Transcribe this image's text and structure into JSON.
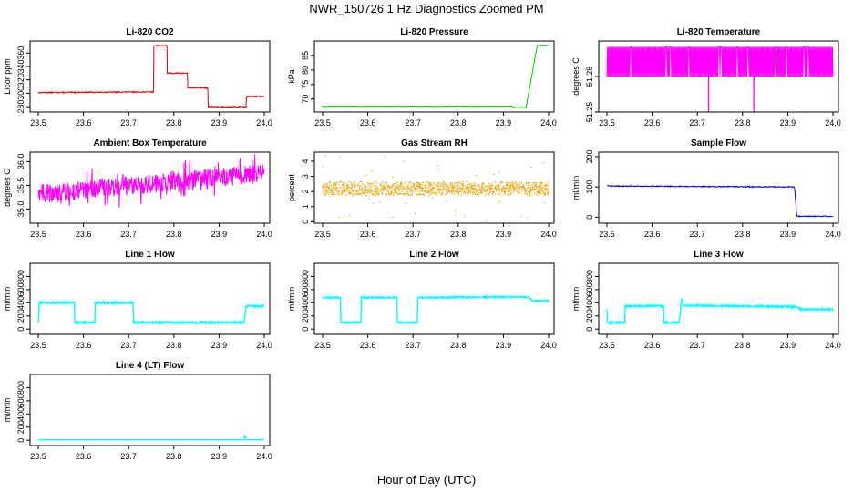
{
  "figure": {
    "title": "NWR_150726  1 Hz Diagnostics Zoomed PM",
    "xlabel": "Hour of Day (UTC)"
  },
  "chart_data": [
    {
      "type": "line",
      "title": "Li-820 CO2",
      "ylabel": "Licor ppm",
      "color": "#dd0000",
      "xlim": [
        23.5,
        24.0
      ],
      "ylim": [
        272,
        378
      ],
      "xticks": [
        "23.5",
        "23.6",
        "23.7",
        "23.8",
        "23.9",
        "24.0"
      ],
      "yticks": [
        "280",
        "300",
        "320",
        "340",
        "360"
      ],
      "series": [
        {
          "name": "CO2",
          "x": [
            23.5,
            23.755,
            23.755,
            23.785,
            23.785,
            23.83,
            23.83,
            23.875,
            23.875,
            23.96,
            23.96,
            24.0
          ],
          "y": [
            301,
            302,
            371,
            371,
            330,
            330,
            308,
            308,
            280,
            280,
            295,
            295
          ],
          "noise": 0.8
        }
      ]
    },
    {
      "type": "line",
      "title": "Li-820 Pressure",
      "ylabel": "kPa",
      "color": "#00cc00",
      "xlim": [
        23.5,
        24.0
      ],
      "ylim": [
        65.5,
        90
      ],
      "xticks": [
        "23.5",
        "23.6",
        "23.7",
        "23.8",
        "23.9",
        "24.0"
      ],
      "yticks": [
        "70",
        "75",
        "80",
        "85"
      ],
      "series": [
        {
          "name": "Pressure",
          "x": [
            23.5,
            23.92,
            23.925,
            23.95,
            23.965,
            23.975,
            24.0
          ],
          "y": [
            67.5,
            67.5,
            67.0,
            67.0,
            80,
            88.5,
            88.5
          ],
          "noise": 0.05
        }
      ]
    },
    {
      "type": "line",
      "title": "Li-820 Temperature",
      "ylabel": "degrees C",
      "color": "#ff00ff",
      "xlim": [
        23.5,
        24.0
      ],
      "ylim": [
        51.25,
        51.31
      ],
      "xticks": [
        "23.5",
        "23.6",
        "23.7",
        "23.8",
        "23.9",
        "24.0"
      ],
      "yticks": [
        "51.25",
        "51.28"
      ],
      "series": [
        {
          "name": "Temperature",
          "x": [
            23.5,
            24.0
          ],
          "y": [
            51.29,
            51.29
          ],
          "band": [
            51.28,
            51.305
          ],
          "dips": [
            23.725,
            23.825
          ],
          "dip_value": 51.25
        }
      ]
    },
    {
      "type": "line",
      "title": "Ambient Box Temperature",
      "ylabel": "degrees C",
      "color": "#ff00ff",
      "xlim": [
        23.5,
        24.0
      ],
      "ylim": [
        34.7,
        36.2
      ],
      "xticks": [
        "23.5",
        "23.6",
        "23.7",
        "23.8",
        "23.9",
        "24.0"
      ],
      "yticks": [
        "35.0",
        "35.5",
        "36.0"
      ],
      "series": [
        {
          "name": "Ambient",
          "x": [
            23.5,
            24.0
          ],
          "y": [
            35.32,
            35.75
          ],
          "noise": 0.2
        }
      ]
    },
    {
      "type": "scatter",
      "title": "Gas Stream RH",
      "ylabel": "percent",
      "color": "#e6a000",
      "xlim": [
        23.5,
        24.0
      ],
      "ylim": [
        -0.1,
        4.6
      ],
      "xticks": [
        "23.5",
        "23.6",
        "23.7",
        "23.8",
        "23.9",
        "24.0"
      ],
      "yticks": [
        "0",
        "1",
        "2",
        "3",
        "4"
      ],
      "series": [
        {
          "name": "RH",
          "x": [
            23.5,
            24.0
          ],
          "y": [
            2.2,
            2.2
          ],
          "noise": 0.45
        }
      ]
    },
    {
      "type": "line",
      "title": "Sample Flow",
      "ylabel": "ml/min",
      "color": "#0000cc",
      "xlim": [
        23.5,
        24.0
      ],
      "ylim": [
        -20,
        215
      ],
      "xticks": [
        "23.5",
        "23.6",
        "23.7",
        "23.8",
        "23.9",
        "24.0"
      ],
      "yticks": [
        "0",
        "100",
        "200"
      ],
      "series": [
        {
          "name": "Sample Flow",
          "x": [
            23.5,
            23.91,
            23.915,
            23.92,
            24.0
          ],
          "y": [
            103,
            100,
            100,
            3,
            3
          ],
          "noise": 1.5
        }
      ]
    },
    {
      "type": "line",
      "title": "Line 1 Flow",
      "ylabel": "ml/min",
      "color": "#00ffff",
      "xlim": [
        23.5,
        24.0
      ],
      "ylim": [
        -80,
        1000
      ],
      "xticks": [
        "23.5",
        "23.6",
        "23.7",
        "23.8",
        "23.9",
        "24.0"
      ],
      "yticks": [
        "0",
        "200",
        "400",
        "600",
        "800"
      ],
      "series": [
        {
          "name": "Line 1",
          "x": [
            23.5,
            23.502,
            23.504,
            23.58,
            23.58,
            23.625,
            23.625,
            23.71,
            23.71,
            23.955,
            23.96,
            24.0
          ],
          "y": [
            100,
            400,
            400,
            400,
            100,
            100,
            400,
            400,
            100,
            100,
            350,
            350
          ],
          "noise": 15
        }
      ]
    },
    {
      "type": "line",
      "title": "Line 2 Flow",
      "ylabel": "ml/min",
      "color": "#00ffff",
      "xlim": [
        23.5,
        24.0
      ],
      "ylim": [
        -80,
        1000
      ],
      "xticks": [
        "23.5",
        "23.6",
        "23.7",
        "23.8",
        "23.9",
        "24.0"
      ],
      "yticks": [
        "0",
        "200",
        "400",
        "600",
        "800"
      ],
      "series": [
        {
          "name": "Line 2",
          "x": [
            23.5,
            23.54,
            23.54,
            23.585,
            23.585,
            23.665,
            23.665,
            23.71,
            23.71,
            23.955,
            23.965,
            24.0
          ],
          "y": [
            480,
            480,
            100,
            100,
            480,
            480,
            100,
            100,
            480,
            490,
            430,
            430
          ],
          "noise": 12
        }
      ]
    },
    {
      "type": "line",
      "title": "Line 3 Flow",
      "ylabel": "ml/min",
      "color": "#00ffff",
      "xlim": [
        23.5,
        24.0
      ],
      "ylim": [
        -80,
        1000
      ],
      "xticks": [
        "23.5",
        "23.6",
        "23.7",
        "23.8",
        "23.9",
        "24.0"
      ],
      "yticks": [
        "0",
        "200",
        "400",
        "600",
        "800"
      ],
      "series": [
        {
          "name": "Line 3",
          "x": [
            23.5,
            23.5,
            23.54,
            23.54,
            23.625,
            23.625,
            23.66,
            23.665,
            23.67,
            23.92,
            23.93,
            24.0
          ],
          "y": [
            300,
            100,
            100,
            350,
            350,
            100,
            100,
            480,
            360,
            340,
            300,
            300
          ],
          "noise": 15
        }
      ]
    },
    {
      "type": "line",
      "title": "Line 4 (LT) Flow",
      "ylabel": "ml/min",
      "color": "#00ffff",
      "xlim": [
        23.5,
        24.0
      ],
      "ylim": [
        -80,
        1000
      ],
      "xticks": [
        "23.5",
        "23.6",
        "23.7",
        "23.8",
        "23.9",
        "24.0"
      ],
      "yticks": [
        "0",
        "200",
        "400",
        "600",
        "800"
      ],
      "series": [
        {
          "name": "Line 4",
          "x": [
            23.5,
            23.955,
            23.957,
            23.96,
            24.0
          ],
          "y": [
            8,
            8,
            80,
            8,
            8
          ],
          "noise": 1
        }
      ]
    }
  ]
}
